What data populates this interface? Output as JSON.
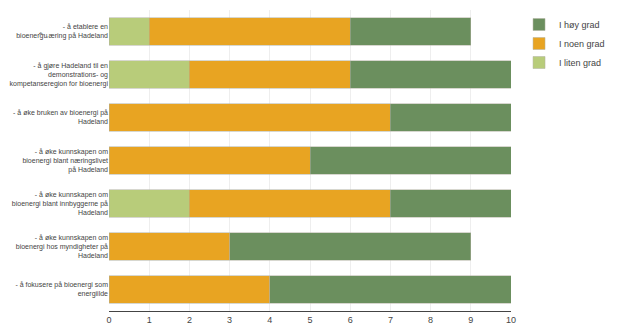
{
  "chart_data": {
    "type": "bar",
    "orientation": "horizontal",
    "stacked": true,
    "categories": [
      "- å etablere en\nbioenergินæring på Hadeland",
      "- å gjøre Hadeland til en\ndemonstrations- og\nkompetanseregion for bioenergi",
      "- å øke bruken av bioenergi på\nHadeland",
      "- å øke kunnskapen om\nbioenergi blant næringslivet\npå Hadeland",
      "- å øke kunnskapen om\nbioenergi blant innbyggerne på\nHadeland",
      "- å øke kunnskapen om\nbioenergi hos myndigheter på\nHadeland",
      "- å fokusere på bioenergi som\nenergiilde"
    ],
    "series": [
      {
        "name": "I liten grad",
        "color": "#b8cc7a",
        "values": [
          1,
          2,
          0,
          0,
          2,
          0,
          0
        ]
      },
      {
        "name": "I noen grad",
        "color": "#e8a422",
        "values": [
          5,
          4,
          7,
          5,
          5,
          3,
          4
        ]
      },
      {
        "name": "I høy grad",
        "color": "#6b8f5e",
        "values": [
          3,
          4,
          3,
          5,
          3,
          6,
          6
        ]
      }
    ],
    "xlim": [
      0,
      10
    ],
    "xticks": [
      0,
      1,
      2,
      3,
      4,
      5,
      6,
      7,
      8,
      9,
      10
    ],
    "grid": true,
    "legend": "right"
  }
}
